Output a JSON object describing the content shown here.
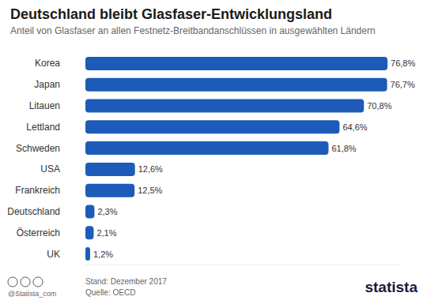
{
  "chart_data": {
    "type": "bar",
    "title": "Deutschland bleibt Glasfaser-Entwicklungsland",
    "subtitle": "Anteil von Glasfaser an allen Festnetz-Breitbandanschlüssen in ausgewählten Ländern",
    "categories": [
      "Korea",
      "Japan",
      "Litauen",
      "Lettland",
      "Schweden",
      "USA",
      "Frankreich",
      "Deutschland",
      "Österreich",
      "UK"
    ],
    "values": [
      76.8,
      76.7,
      70.8,
      64.6,
      61.8,
      12.6,
      12.5,
      2.3,
      2.1,
      1.2
    ],
    "value_labels": [
      "76,8%",
      "76,7%",
      "70,8%",
      "64,6%",
      "61,8%",
      "12,6%",
      "12,5%",
      "2,3%",
      "2,1%",
      "1,2%"
    ],
    "color": "#1c5cb8",
    "orientation": "horizontal",
    "xlim": [
      0,
      80
    ],
    "data_labels": true,
    "tick_labels": "y",
    "grid": false,
    "annotations": [
      "Stand: Dezember 2017",
      "Quelle: OECD",
      "@Statista_com",
      "statista"
    ]
  }
}
